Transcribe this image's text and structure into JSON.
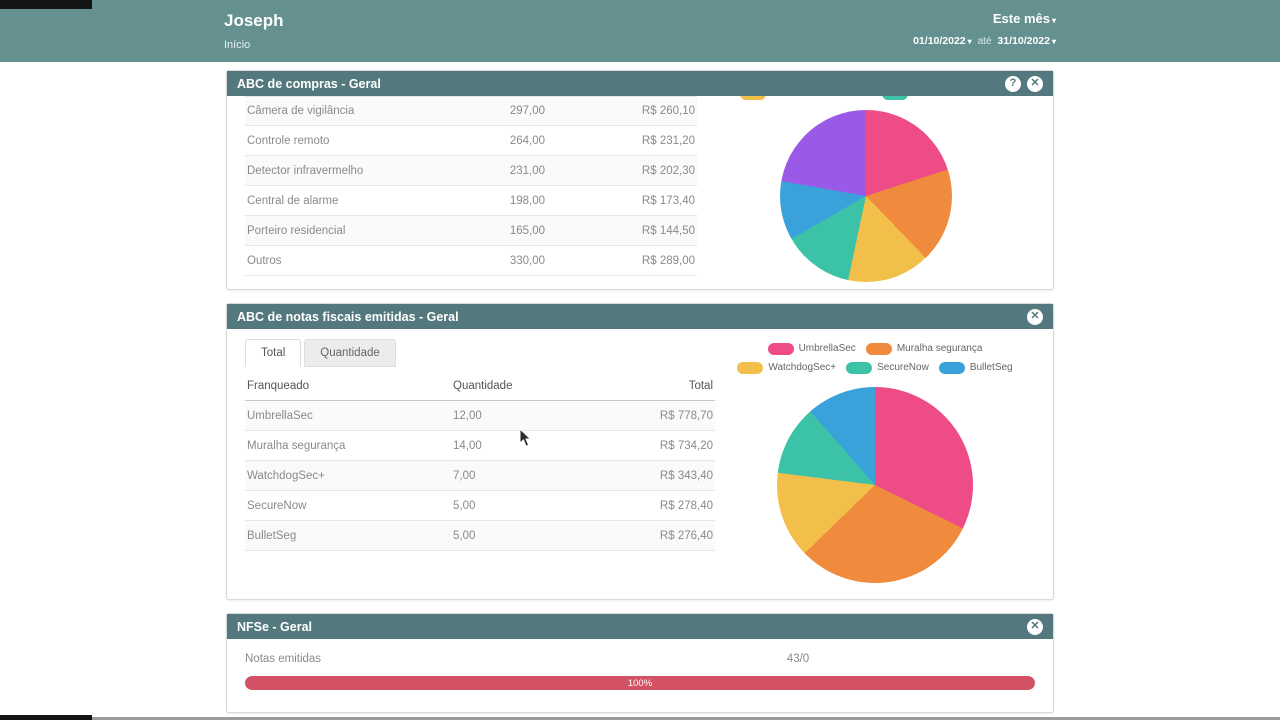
{
  "header": {
    "title": "Joseph",
    "nav": "Início",
    "period": "Este mês",
    "date_from": "01/10/2022",
    "between": "até",
    "date_to": "31/10/2022"
  },
  "panels": {
    "compras": {
      "title": "ABC de compras - Geral",
      "help_icon": "?",
      "close_icon": "✕",
      "rows": [
        {
          "label": "Câmera de vigilância",
          "qty": "297,00",
          "total": "R$ 260,10"
        },
        {
          "label": "Controle remoto",
          "qty": "264,00",
          "total": "R$ 231,20"
        },
        {
          "label": "Detector infravermelho",
          "qty": "231,00",
          "total": "R$ 202,30"
        },
        {
          "label": "Central de alarme",
          "qty": "198,00",
          "total": "R$ 173,40"
        },
        {
          "label": "Porteiro residencial",
          "qty": "165,00",
          "total": "R$ 144,50"
        },
        {
          "label": "Outros",
          "qty": "330,00",
          "total": "R$ 289,00"
        }
      ]
    },
    "notas": {
      "title": "ABC de notas fiscais emitidas - Geral",
      "close_icon": "✕",
      "tabs": [
        "Total",
        "Quantidade"
      ],
      "columns": [
        "Franqueado",
        "Quantidade",
        "Total"
      ],
      "rows": [
        {
          "label": "UmbrellaSec",
          "qty": "12,00",
          "total": "R$ 778,70"
        },
        {
          "label": "Muralha segurança",
          "qty": "14,00",
          "total": "R$ 734,20"
        },
        {
          "label": "WatchdogSec+",
          "qty": "7,00",
          "total": "R$ 343,40"
        },
        {
          "label": "SecureNow",
          "qty": "5,00",
          "total": "R$ 278,40"
        },
        {
          "label": "BulletSeg",
          "qty": "5,00",
          "total": "R$ 276,40"
        }
      ]
    },
    "nfse": {
      "title": "NFSe - Geral",
      "close_icon": "✕",
      "label": "Notas emitidas",
      "value": "43/0",
      "progress_text": "100%",
      "progress_percent": 100
    }
  },
  "chart_data": [
    {
      "type": "pie",
      "title": "ABC de compras - Geral",
      "labels": [
        "Câmera de vigilância",
        "Controle remoto",
        "Detector infravermelho",
        "Central de alarme",
        "Porteiro residencial",
        "Outros"
      ],
      "values": [
        260.1,
        231.2,
        202.3,
        173.4,
        144.5,
        289.0
      ],
      "colors": [
        "#ee4c86",
        "#f08a3c",
        "#f2c04a",
        "#3cc2a7",
        "#3aa2db",
        "#9b59e8"
      ],
      "legend_position": "top-cut-off"
    },
    {
      "type": "pie",
      "title": "ABC de notas fiscais emitidas - Geral",
      "labels": [
        "UmbrellaSec",
        "Muralha segurança",
        "WatchdogSec+",
        "SecureNow",
        "BulletSeg"
      ],
      "values": [
        778.7,
        734.2,
        343.4,
        278.4,
        276.4
      ],
      "colors": [
        "#ee4c86",
        "#f08a3c",
        "#f2c04a",
        "#3cc2a7",
        "#3aa2db"
      ],
      "legend_position": "top"
    }
  ],
  "colors": {
    "topbar_bg": "#64908f",
    "panel_header_bg": "#53787d",
    "progress_fill": "#d25164"
  }
}
